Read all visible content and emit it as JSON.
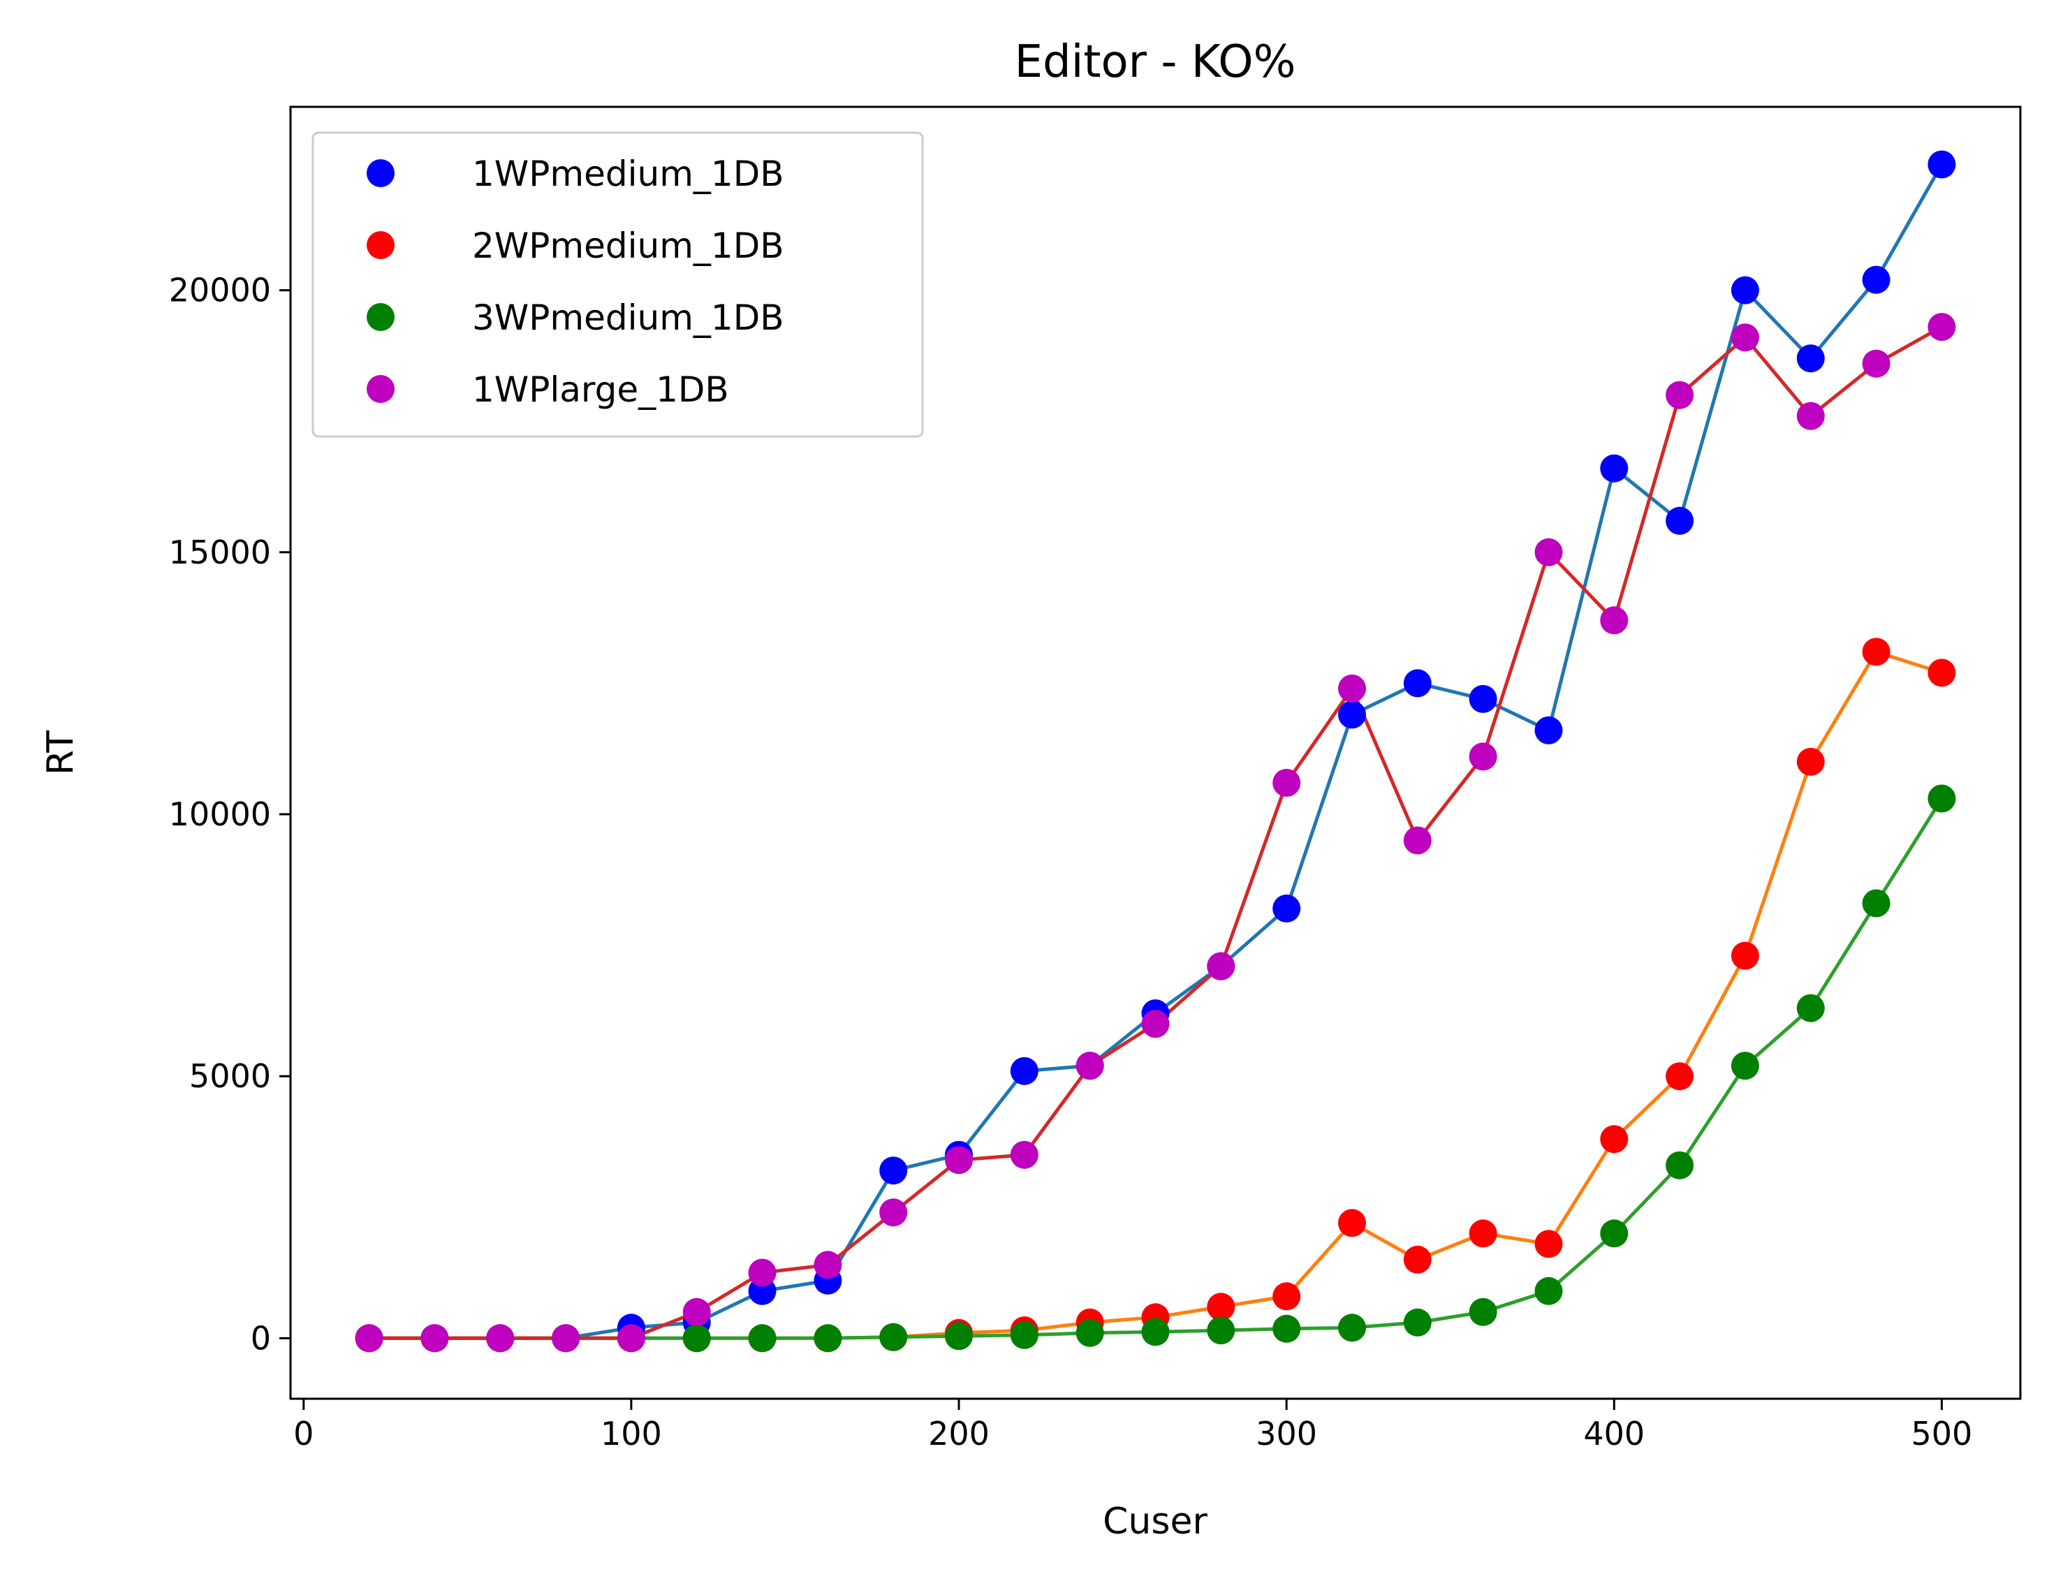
{
  "chart_data": {
    "type": "line",
    "title": "Editor - KO%",
    "xlabel": "Cuser",
    "ylabel": "RT",
    "xlim": [
      -4,
      524
    ],
    "ylim": [
      -1155,
      23500
    ],
    "xticks": [
      0,
      100,
      200,
      300,
      400,
      500
    ],
    "yticks": [
      0,
      5000,
      10000,
      15000,
      20000
    ],
    "grid": false,
    "legend_position": "top-left",
    "x": [
      20,
      40,
      60,
      80,
      100,
      120,
      140,
      160,
      180,
      200,
      220,
      240,
      260,
      280,
      300,
      320,
      340,
      360,
      380,
      400,
      420,
      440,
      460,
      480,
      500
    ],
    "series": [
      {
        "name": "1WPmedium_1DB",
        "marker_color": "#0000ff",
        "line_color": "#1f77b4",
        "values": [
          0,
          0,
          0,
          0,
          200,
          300,
          900,
          1100,
          3200,
          3500,
          5100,
          5200,
          6200,
          7100,
          8200,
          11900,
          12500,
          12200,
          11600,
          16600,
          15600,
          20000,
          18700,
          20200,
          22400
        ]
      },
      {
        "name": "2WPmedium_1DB",
        "marker_color": "#ff0000",
        "line_color": "#ff7f0e",
        "values": [
          0,
          0,
          0,
          0,
          0,
          0,
          0,
          0,
          20,
          100,
          150,
          300,
          400,
          600,
          800,
          2200,
          1500,
          2000,
          1800,
          3800,
          5000,
          7300,
          11000,
          13100,
          12700
        ]
      },
      {
        "name": "3WPmedium_1DB",
        "marker_color": "#008000",
        "line_color": "#2ca02c",
        "values": [
          0,
          0,
          0,
          0,
          0,
          0,
          0,
          0,
          20,
          40,
          60,
          100,
          120,
          150,
          180,
          200,
          300,
          500,
          900,
          2000,
          3300,
          5200,
          6300,
          8300,
          10300
        ]
      },
      {
        "name": "1WPlarge_1DB",
        "marker_color": "#bf00bf",
        "line_color": "#d62728",
        "values": [
          0,
          0,
          0,
          0,
          0,
          500,
          1250,
          1400,
          2400,
          3400,
          3500,
          5200,
          6000,
          7100,
          10600,
          12400,
          9500,
          11100,
          15000,
          13700,
          18000,
          19100,
          17600,
          18600,
          19300
        ]
      }
    ]
  }
}
